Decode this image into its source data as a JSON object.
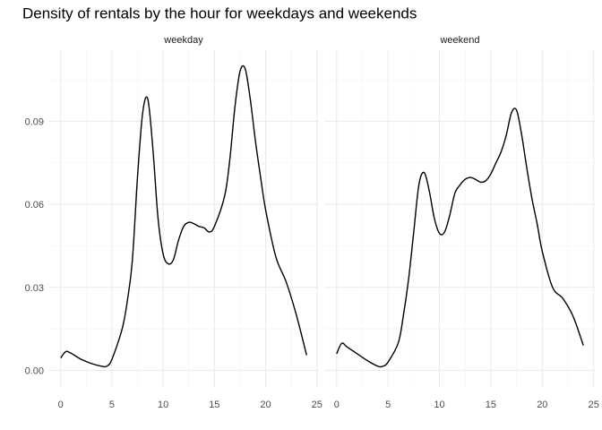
{
  "chart_data": {
    "type": "line",
    "title": "Density of rentals by the hour for weekdays and weekends",
    "xlabel": "",
    "ylabel": "",
    "xlim": [
      -1.2,
      25.2
    ],
    "ylim": [
      -0.006,
      0.116
    ],
    "x_ticks": [
      "0",
      "5",
      "10",
      "15",
      "20",
      "25"
    ],
    "y_ticks": [
      "0.00",
      "0.03",
      "0.06",
      "0.09"
    ],
    "x_tick_values": [
      0,
      5,
      10,
      15,
      20,
      25
    ],
    "y_tick_values": [
      0,
      0.03,
      0.06,
      0.09
    ],
    "grid": true,
    "legend": "none",
    "facets": [
      {
        "label": "weekday",
        "x": [
          0,
          0.5,
          1,
          2,
          3,
          4,
          4.5,
          5,
          6,
          6.5,
          7,
          7.5,
          8,
          8.5,
          9,
          9.5,
          10,
          10.5,
          11,
          11.5,
          12,
          12.5,
          13,
          13.5,
          14,
          14.5,
          15,
          16,
          16.5,
          17,
          17.5,
          18,
          18.5,
          19,
          19.5,
          20,
          21,
          22,
          23,
          24
        ],
        "y": [
          0.0045,
          0.0068,
          0.0062,
          0.004,
          0.0025,
          0.0015,
          0.0015,
          0.004,
          0.015,
          0.025,
          0.04,
          0.07,
          0.093,
          0.098,
          0.08,
          0.055,
          0.042,
          0.0385,
          0.04,
          0.047,
          0.052,
          0.0535,
          0.053,
          0.052,
          0.0515,
          0.05,
          0.052,
          0.063,
          0.076,
          0.095,
          0.108,
          0.109,
          0.098,
          0.083,
          0.07,
          0.058,
          0.041,
          0.032,
          0.02,
          0.0055
        ]
      },
      {
        "label": "weekend",
        "x": [
          0,
          0.5,
          1,
          2,
          3,
          4,
          4.5,
          5,
          6,
          6.5,
          7,
          7.5,
          8,
          8.5,
          9,
          9.5,
          10,
          10.5,
          11,
          11.5,
          12,
          12.5,
          13,
          13.5,
          14,
          14.5,
          15,
          15.5,
          16,
          16.5,
          17,
          17.5,
          18,
          18.5,
          19,
          19.5,
          20,
          21,
          22,
          23,
          24
        ],
        "y": [
          0.006,
          0.0098,
          0.0085,
          0.006,
          0.0035,
          0.0015,
          0.0015,
          0.003,
          0.01,
          0.02,
          0.033,
          0.05,
          0.067,
          0.0715,
          0.065,
          0.055,
          0.0495,
          0.05,
          0.056,
          0.064,
          0.067,
          0.069,
          0.0697,
          0.069,
          0.068,
          0.0685,
          0.071,
          0.075,
          0.079,
          0.085,
          0.093,
          0.094,
          0.085,
          0.073,
          0.062,
          0.053,
          0.043,
          0.03,
          0.026,
          0.0195,
          0.009
        ]
      }
    ]
  }
}
